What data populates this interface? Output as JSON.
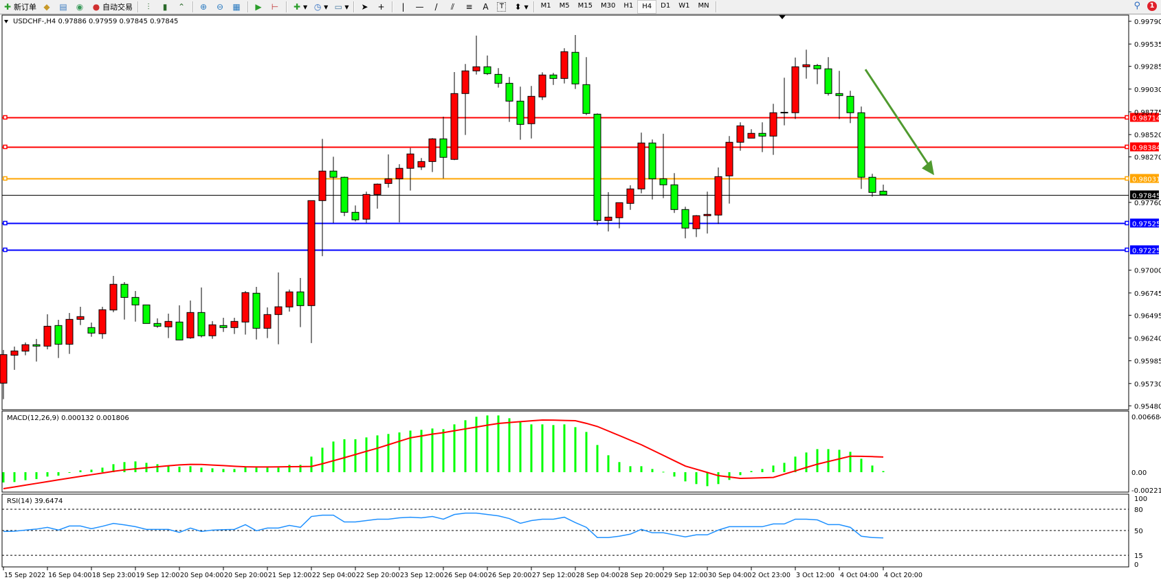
{
  "toolbar": {
    "new_order": "新订单",
    "auto_trading": "自动交易",
    "timeframes": [
      "M1",
      "M5",
      "M15",
      "M30",
      "H1",
      "H4",
      "D1",
      "W1",
      "MN"
    ],
    "active_timeframe": "H4",
    "notification_count": "1",
    "icons": [
      "new-order-icon",
      "metaeditor-icon",
      "navigator-icon",
      "signals-icon",
      "auto-trading-icon",
      "bar-chart-icon",
      "candlestick-icon",
      "line-chart-icon",
      "zoom-in-icon",
      "zoom-out-icon",
      "tile-windows-icon",
      "autoscroll-icon",
      "chart-shift-icon",
      "indicators-icon",
      "periods-icon",
      "templates-icon",
      "cursor-icon",
      "crosshair-icon",
      "vertical-line-icon",
      "horizontal-line-icon",
      "trendline-icon",
      "equidistant-channel-icon",
      "fibonacci-icon",
      "text-icon",
      "text-label-icon",
      "arrows-icon",
      "search-icon",
      "notification-icon"
    ]
  },
  "chart": {
    "title": "USDCHF-,H4  0.97886 0.97959 0.97845 0.97845",
    "colors": {
      "bull": "#ff0000",
      "bear": "#00ff00",
      "outline": "#000000",
      "arrow": "#4f9a2f"
    }
  },
  "chart_data": [
    {
      "type": "candlestick",
      "symbol": "USDCHF-",
      "timeframe": "H4",
      "ylim": [
        0.95436,
        0.99859
      ],
      "y_ticks": [
        "0.99790",
        "0.99535",
        "0.99285",
        "0.99030",
        "0.98775",
        "0.98520",
        "0.98270",
        "0.97760",
        "0.97000",
        "0.96745",
        "0.96495",
        "0.96240",
        "0.95985",
        "0.95730",
        "0.95480"
      ],
      "x_tick_labels": [
        "15 Sep 2022",
        "16 Sep 04:00",
        "18 Sep 23:00",
        "19 Sep 12:00",
        "20 Sep 04:00",
        "20 Sep 20:00",
        "21 Sep 12:00",
        "22 Sep 04:00",
        "22 Sep 20:00",
        "23 Sep 12:00",
        "26 Sep 04:00",
        "26 Sep 20:00",
        "27 Sep 12:00",
        "28 Sep 04:00",
        "28 Sep 20:00",
        "29 Sep 12:00",
        "30 Sep 04:00",
        "2 Oct 23:00",
        "3 Oct 12:00",
        "4 Oct 04:00",
        "4 Oct 20:00"
      ],
      "x_tick_every": 4,
      "ohlc": [
        [
          0.95734,
          0.96106,
          0.95554,
          0.96054
        ],
        [
          0.96047,
          0.96144,
          0.95883,
          0.96095
        ],
        [
          0.96093,
          0.9619,
          0.96047,
          0.96165
        ],
        [
          0.96165,
          0.96229,
          0.95977,
          0.96149
        ],
        [
          0.96149,
          0.96506,
          0.96113,
          0.96372
        ],
        [
          0.9638,
          0.96444,
          0.96016,
          0.9617
        ],
        [
          0.9617,
          0.96521,
          0.96062,
          0.96449
        ],
        [
          0.96449,
          0.9659,
          0.96385,
          0.9648
        ],
        [
          0.96357,
          0.96413,
          0.96254,
          0.96295
        ],
        [
          0.96288,
          0.9659,
          0.96231,
          0.96557
        ],
        [
          0.96554,
          0.96936,
          0.96529,
          0.96842
        ],
        [
          0.96842,
          0.96867,
          0.96447,
          0.96695
        ],
        [
          0.96695,
          0.96767,
          0.96424,
          0.96611
        ],
        [
          0.96611,
          0.96611,
          0.96403,
          0.96403
        ],
        [
          0.96403,
          0.9646,
          0.96354,
          0.96372
        ],
        [
          0.96365,
          0.96513,
          0.96239,
          0.96426
        ],
        [
          0.96419,
          0.96606,
          0.96218,
          0.96218
        ],
        [
          0.96242,
          0.9666,
          0.96231,
          0.96526
        ],
        [
          0.96526,
          0.96806,
          0.96247,
          0.96265
        ],
        [
          0.96265,
          0.96429,
          0.96231,
          0.96388
        ],
        [
          0.9638,
          0.96467,
          0.96308,
          0.96357
        ],
        [
          0.96357,
          0.96467,
          0.96285,
          0.96426
        ],
        [
          0.96419,
          0.96767,
          0.96278,
          0.96749
        ],
        [
          0.96742,
          0.96813,
          0.96224,
          0.96349
        ],
        [
          0.96349,
          0.96583,
          0.96239,
          0.96503
        ],
        [
          0.96503,
          0.96975,
          0.9617,
          0.9659
        ],
        [
          0.96588,
          0.96783,
          0.96536,
          0.96757
        ],
        [
          0.96757,
          0.96913,
          0.96362,
          0.96603
        ],
        [
          0.96603,
          0.9778,
          0.96183,
          0.9778
        ],
        [
          0.9778,
          0.98472,
          0.97157,
          0.98111
        ],
        [
          0.98111,
          0.98272,
          0.97529,
          0.98042
        ],
        [
          0.98042,
          0.98049,
          0.97606,
          0.97649
        ],
        [
          0.97649,
          0.97726,
          0.97547,
          0.97565
        ],
        [
          0.97572,
          0.9788,
          0.97529,
          0.97849
        ],
        [
          0.97849,
          0.97972,
          0.9769,
          0.97965
        ],
        [
          0.97972,
          0.98298,
          0.97926,
          0.98024
        ],
        [
          0.98024,
          0.98188,
          0.97536,
          0.98142
        ],
        [
          0.98142,
          0.9837,
          0.97893,
          0.98303
        ],
        [
          0.98157,
          0.98257,
          0.98124,
          0.98218
        ],
        [
          0.98218,
          0.9848,
          0.98101,
          0.98472
        ],
        [
          0.98472,
          0.98721,
          0.98029,
          0.98265
        ],
        [
          0.98242,
          0.99221,
          0.98234,
          0.9898
        ],
        [
          0.9898,
          0.99311,
          0.98516,
          0.99234
        ],
        [
          0.99234,
          0.99629,
          0.99193,
          0.9928
        ],
        [
          0.9928,
          0.99406,
          0.99188,
          0.99203
        ],
        [
          0.99195,
          0.99265,
          0.99047,
          0.99095
        ],
        [
          0.99095,
          0.99165,
          0.98662,
          0.98895
        ],
        [
          0.98895,
          0.99057,
          0.98462,
          0.98634
        ],
        [
          0.98642,
          0.99065,
          0.98477,
          0.98949
        ],
        [
          0.98942,
          0.99218,
          0.98908,
          0.99188
        ],
        [
          0.99188,
          0.99211,
          0.99077,
          0.99149
        ],
        [
          0.99149,
          0.99488,
          0.99093,
          0.99449
        ],
        [
          0.99442,
          0.99636,
          0.99031,
          0.99088
        ],
        [
          0.9908,
          0.99388,
          0.98739,
          0.98757
        ],
        [
          0.98749,
          0.98757,
          0.97503,
          0.97557
        ],
        [
          0.97557,
          0.97875,
          0.97434,
          0.97595
        ],
        [
          0.97588,
          0.97757,
          0.9747,
          0.97757
        ],
        [
          0.97749,
          0.97952,
          0.97677,
          0.97911
        ],
        [
          0.97911,
          0.98542,
          0.97862,
          0.98426
        ],
        [
          0.98426,
          0.98465,
          0.97793,
          0.98024
        ],
        [
          0.98024,
          0.98529,
          0.97808,
          0.97957
        ],
        [
          0.97957,
          0.98088,
          0.97642,
          0.9768
        ],
        [
          0.9768,
          0.97711,
          0.97357,
          0.97472
        ],
        [
          0.97465,
          0.97618,
          0.97372,
          0.97611
        ],
        [
          0.97611,
          0.9788,
          0.97411,
          0.97626
        ],
        [
          0.97618,
          0.98152,
          0.97518,
          0.98049
        ],
        [
          0.98057,
          0.98503,
          0.97747,
          0.98434
        ],
        [
          0.98434,
          0.98657,
          0.98339,
          0.98618
        ],
        [
          0.9848,
          0.9858,
          0.9848,
          0.98534
        ],
        [
          0.98534,
          0.98657,
          0.98324,
          0.98503
        ],
        [
          0.98503,
          0.98865,
          0.98293,
          0.98765
        ],
        [
          0.9877,
          0.99157,
          0.98624,
          0.98765
        ],
        [
          0.98765,
          0.99383,
          0.98695,
          0.9928
        ],
        [
          0.9928,
          0.99472,
          0.99147,
          0.99303
        ],
        [
          0.99295,
          0.99311,
          0.99085,
          0.99257
        ],
        [
          0.99257,
          0.99388,
          0.98957,
          0.9898
        ],
        [
          0.9898,
          0.99234,
          0.98695,
          0.98957
        ],
        [
          0.98949,
          0.99011,
          0.98649,
          0.98765
        ],
        [
          0.98765,
          0.98834,
          0.97911,
          0.98042
        ],
        [
          0.98042,
          0.9808,
          0.97824,
          0.97872
        ],
        [
          0.97886,
          0.97959,
          0.97845,
          0.97845
        ]
      ],
      "horizontal_lines": [
        {
          "price": "0.98714",
          "color": "#ff0000"
        },
        {
          "price": "0.98384",
          "color": "#ff0000"
        },
        {
          "price": "0.98031",
          "color": "#ffa500"
        },
        {
          "price": "0.97845",
          "color": "#000000",
          "bid": true
        },
        {
          "price": "0.97525",
          "color": "#0000ff"
        },
        {
          "price": "0.97225",
          "color": "#0000ff"
        }
      ],
      "arrow": {
        "from": {
          "bar": 79,
          "price": 0.9925
        },
        "to": {
          "bar": 85,
          "price": 0.9808
        },
        "color": "#4f9a2f"
      }
    },
    {
      "type": "macd",
      "label": "MACD(12,26,9) 0.000132 0.001806",
      "y_ticks": [
        "0.006684",
        "0.00",
        "-0.002217"
      ],
      "histogram_color": "#00ff00",
      "signal_color": "#ff0000",
      "histogram": [
        -0.00122,
        -0.00117,
        -0.00095,
        -0.00082,
        -0.00052,
        -0.00041,
        -5e-05,
        0.00022,
        0.0003,
        0.00054,
        0.00095,
        0.0012,
        0.00128,
        0.00111,
        0.00095,
        0.00079,
        0.00065,
        0.00071,
        0.00054,
        0.00046,
        0.00038,
        0.00038,
        0.00065,
        0.00054,
        0.00054,
        0.00054,
        0.00087,
        0.00087,
        0.00185,
        0.00291,
        0.00364,
        0.00391,
        0.00391,
        0.00413,
        0.00437,
        0.00454,
        0.00472,
        0.00494,
        0.00503,
        0.00519,
        0.00511,
        0.00568,
        0.00617,
        0.00658,
        0.00674,
        0.00674,
        0.00641,
        0.00592,
        0.00568,
        0.00568,
        0.0056,
        0.00568,
        0.00535,
        0.00478,
        0.00323,
        0.00201,
        0.0012,
        0.00071,
        0.00071,
        0.00038,
        5e-05,
        -0.00052,
        -0.00109,
        -0.00141,
        -0.00166,
        -0.00141,
        -0.00092,
        -0.00035,
        0.00014,
        0.00038,
        0.00079,
        0.00111,
        0.00185,
        0.00234,
        0.00274,
        0.00274,
        0.00266,
        0.00242,
        0.0016,
        0.00079,
        0.000132
      ],
      "signal": [
        -0.00196,
        -0.00175,
        -0.00154,
        -0.00133,
        -0.00112,
        -0.00091,
        -0.0007,
        -0.0005,
        -0.0003,
        -0.0001,
        0.0001,
        0.00027,
        0.0004,
        0.00052,
        0.00064,
        0.00076,
        0.00087,
        0.00093,
        0.00092,
        0.00085,
        0.00078,
        0.0007,
        0.00064,
        0.00062,
        0.00062,
        0.00063,
        0.00065,
        0.00066,
        0.00068,
        0.001,
        0.00136,
        0.00172,
        0.0021,
        0.00248,
        0.00285,
        0.00326,
        0.00367,
        0.00408,
        0.0043,
        0.00452,
        0.0047,
        0.00492,
        0.00514,
        0.00536,
        0.00558,
        0.00579,
        0.0059,
        0.006,
        0.0061,
        0.00619,
        0.00618,
        0.00614,
        0.00611,
        0.0058,
        0.00543,
        0.00489,
        0.00435,
        0.0038,
        0.00326,
        0.00263,
        0.002,
        0.00136,
        0.00073,
        0.00035,
        -3e-05,
        -0.00041,
        -0.00057,
        -0.00073,
        -0.0007,
        -0.00066,
        -0.00062,
        -0.00023,
        0.00016,
        0.00056,
        0.00095,
        0.00127,
        0.00158,
        0.0019,
        0.00188,
        0.00185,
        0.001806
      ]
    },
    {
      "type": "line",
      "label": "RSI(14) 39.6474",
      "y_ticks": [
        "100",
        "80",
        "50",
        "15",
        "0"
      ],
      "levels": [
        80,
        50,
        15
      ],
      "ylim": [
        0,
        100
      ],
      "color": "#1e90ff",
      "values": [
        48.7,
        49,
        50.6,
        52,
        54.5,
        50.6,
        56.4,
        56.4,
        52.6,
        56,
        60,
        58,
        55.4,
        51.6,
        51.6,
        51.6,
        47.4,
        53.5,
        48.7,
        50.6,
        51.2,
        51.6,
        58.3,
        49.7,
        53.5,
        53.5,
        57.3,
        54.5,
        69.8,
        71.7,
        71.7,
        62.1,
        62.1,
        64.0,
        66.0,
        66.0,
        67.9,
        68.8,
        67.9,
        69.8,
        66.0,
        72.6,
        74.6,
        74.6,
        72.6,
        70.7,
        66.9,
        60.2,
        64.0,
        66,
        66,
        68.8,
        61.2,
        54.5,
        40.1,
        40.1,
        42.0,
        44.9,
        51.6,
        46.8,
        46.8,
        43.9,
        41.1,
        43.9,
        43.9,
        50.6,
        55.4,
        55.4,
        55.4,
        55.4,
        59.3,
        59.3,
        66.0,
        66.0,
        65.0,
        58.3,
        58.3,
        54.5,
        42.0,
        40.1,
        39.6474
      ]
    }
  ]
}
